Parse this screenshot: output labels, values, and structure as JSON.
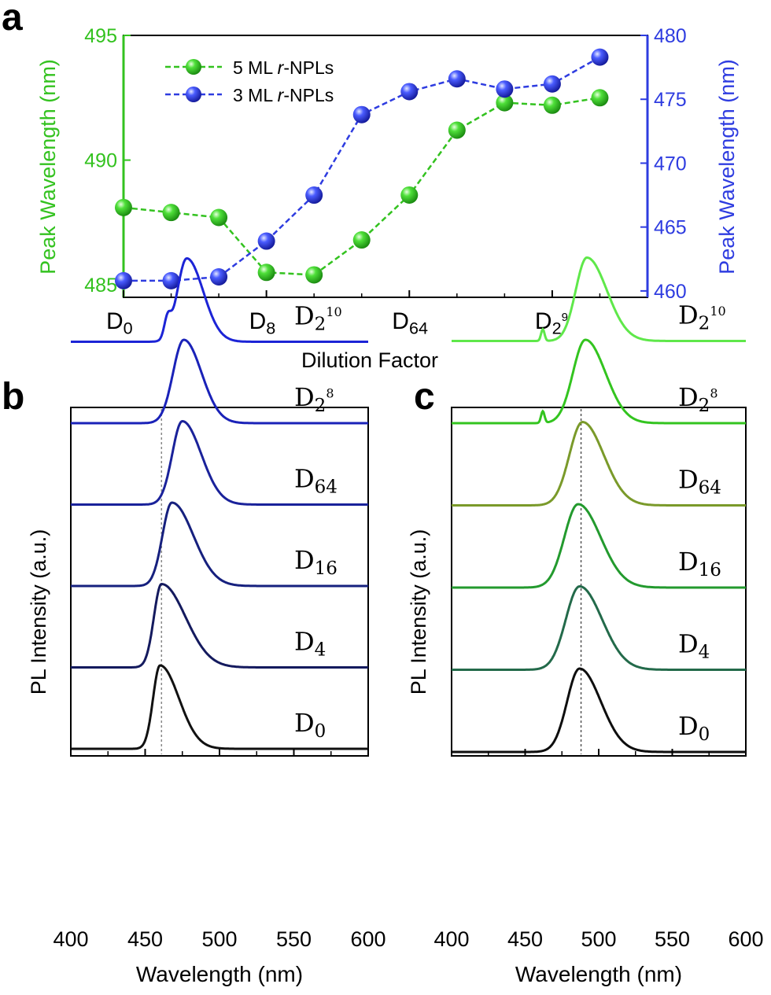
{
  "colors": {
    "green": "#33c21f",
    "blue": "#2e3ce0",
    "axis": "#000000",
    "refline": "#888888"
  },
  "panel_a": {
    "label": "a",
    "y_left_label": "Peak Wavelength (nm)",
    "y_right_label": "Peak Wavelength (nm)",
    "x_label": "Dilution Factor",
    "x_ticks": [
      {
        "base": "D",
        "sub": "0",
        "sup": ""
      },
      {
        "base": "D",
        "sub": "8",
        "sup": ""
      },
      {
        "base": "D",
        "sub": "64",
        "sup": ""
      },
      {
        "base": "D",
        "sub": "2",
        "sup": "9"
      }
    ],
    "y_left_ticks": [
      "485",
      "490",
      "495"
    ],
    "y_right_ticks": [
      "460",
      "465",
      "470",
      "475",
      "480"
    ],
    "legend": [
      {
        "pre": "5 ML ",
        "ital": "r",
        "post": "-NPLs"
      },
      {
        "pre": "3 ML ",
        "ital": "r",
        "post": "-NPLs"
      }
    ]
  },
  "panel_b": {
    "label": "b",
    "x_label": "Wavelength (nm)",
    "y_label": "PL Intensity (a.u.)",
    "x_ticks": [
      "400",
      "450",
      "500",
      "550",
      "600"
    ],
    "curve_labels": [
      {
        "base": "D",
        "sub": "2",
        "sup": "10"
      },
      {
        "base": "D",
        "sub": "2",
        "sup": "8"
      },
      {
        "base": "D",
        "sub": "64",
        "sup": ""
      },
      {
        "base": "D",
        "sub": "16",
        "sup": ""
      },
      {
        "base": "D",
        "sub": "4",
        "sup": ""
      },
      {
        "base": "D",
        "sub": "0",
        "sup": ""
      }
    ]
  },
  "panel_c": {
    "label": "c",
    "x_label": "Wavelength (nm)",
    "y_label": "PL Intensity (a.u.)",
    "x_ticks": [
      "400",
      "450",
      "500",
      "550",
      "600"
    ],
    "curve_labels": [
      {
        "base": "D",
        "sub": "2",
        "sup": "10"
      },
      {
        "base": "D",
        "sub": "2",
        "sup": "8"
      },
      {
        "base": "D",
        "sub": "64",
        "sup": ""
      },
      {
        "base": "D",
        "sub": "16",
        "sup": ""
      },
      {
        "base": "D",
        "sub": "4",
        "sup": ""
      },
      {
        "base": "D",
        "sub": "0",
        "sup": ""
      }
    ]
  },
  "chart_data": [
    {
      "type": "line",
      "panel": "a",
      "xlabel": "Dilution Factor",
      "x": [
        0,
        1,
        2,
        3,
        4,
        5,
        6,
        7,
        8,
        9,
        10
      ],
      "xlim": [
        0,
        11
      ],
      "series": [
        {
          "name": "5 ML r-NPLs",
          "axis": "left",
          "color": "#33c21f",
          "values": [
            488.1,
            487.9,
            487.7,
            485.5,
            485.4,
            486.8,
            488.6,
            491.2,
            492.3,
            492.2,
            492.5
          ]
        },
        {
          "name": "3 ML r-NPLs",
          "axis": "right",
          "color": "#2e3ce0",
          "values": [
            460.8,
            460.8,
            461.1,
            463.9,
            467.5,
            473.8,
            475.6,
            476.6,
            475.8,
            476.2,
            478.3
          ]
        }
      ],
      "ylabel_left": "Peak Wavelength (nm)",
      "ylim_left": [
        484.5,
        495
      ],
      "ylabel_right": "Peak Wavelength (nm)",
      "ylim_right": [
        459.5,
        480
      ],
      "legend_position": "top-left",
      "grid": false
    },
    {
      "type": "line",
      "panel": "b",
      "xlabel": "Wavelength (nm)",
      "ylabel": "PL Intensity (a.u.)",
      "xlim": [
        400,
        600
      ],
      "reference_line_x": 461,
      "series": [
        {
          "name": "D2^10",
          "peak": 478,
          "fwhm_left": 15,
          "fwhm_right": 26,
          "color": "#1c24d6",
          "shoulder": 465
        },
        {
          "name": "D2^8",
          "peak": 476,
          "fwhm_left": 17,
          "fwhm_right": 28,
          "color": "#1a22b8"
        },
        {
          "name": "D64",
          "peak": 475,
          "fwhm_left": 16,
          "fwhm_right": 30,
          "color": "#1a229a"
        },
        {
          "name": "D16",
          "peak": 468,
          "fwhm_left": 15,
          "fwhm_right": 34,
          "color": "#16207e"
        },
        {
          "name": "D4",
          "peak": 461,
          "fwhm_left": 12,
          "fwhm_right": 38,
          "color": "#141a5e"
        },
        {
          "name": "D0",
          "peak": 460,
          "fwhm_left": 11,
          "fwhm_right": 30,
          "color": "#111111"
        }
      ],
      "grid": false
    },
    {
      "type": "line",
      "panel": "c",
      "xlabel": "Wavelength (nm)",
      "ylabel": "PL Intensity (a.u.)",
      "xlim": [
        400,
        600
      ],
      "reference_line_x": 488,
      "series": [
        {
          "name": "D2^10",
          "peak": 492,
          "fwhm_left": 18,
          "fwhm_right": 32,
          "color": "#5fe84a",
          "spike": 462
        },
        {
          "name": "D2^8",
          "peak": 491,
          "fwhm_left": 20,
          "fwhm_right": 32,
          "color": "#33c41f",
          "spike": 462
        },
        {
          "name": "D64",
          "peak": 489,
          "fwhm_left": 21,
          "fwhm_right": 34,
          "color": "#7a9a2a"
        },
        {
          "name": "D16",
          "peak": 486,
          "fwhm_left": 22,
          "fwhm_right": 36,
          "color": "#239a2e"
        },
        {
          "name": "D4",
          "peak": 487,
          "fwhm_left": 22,
          "fwhm_right": 36,
          "color": "#236a4a"
        },
        {
          "name": "D0",
          "peak": 487,
          "fwhm_left": 20,
          "fwhm_right": 34,
          "color": "#0e0e0e"
        }
      ],
      "grid": false
    }
  ]
}
